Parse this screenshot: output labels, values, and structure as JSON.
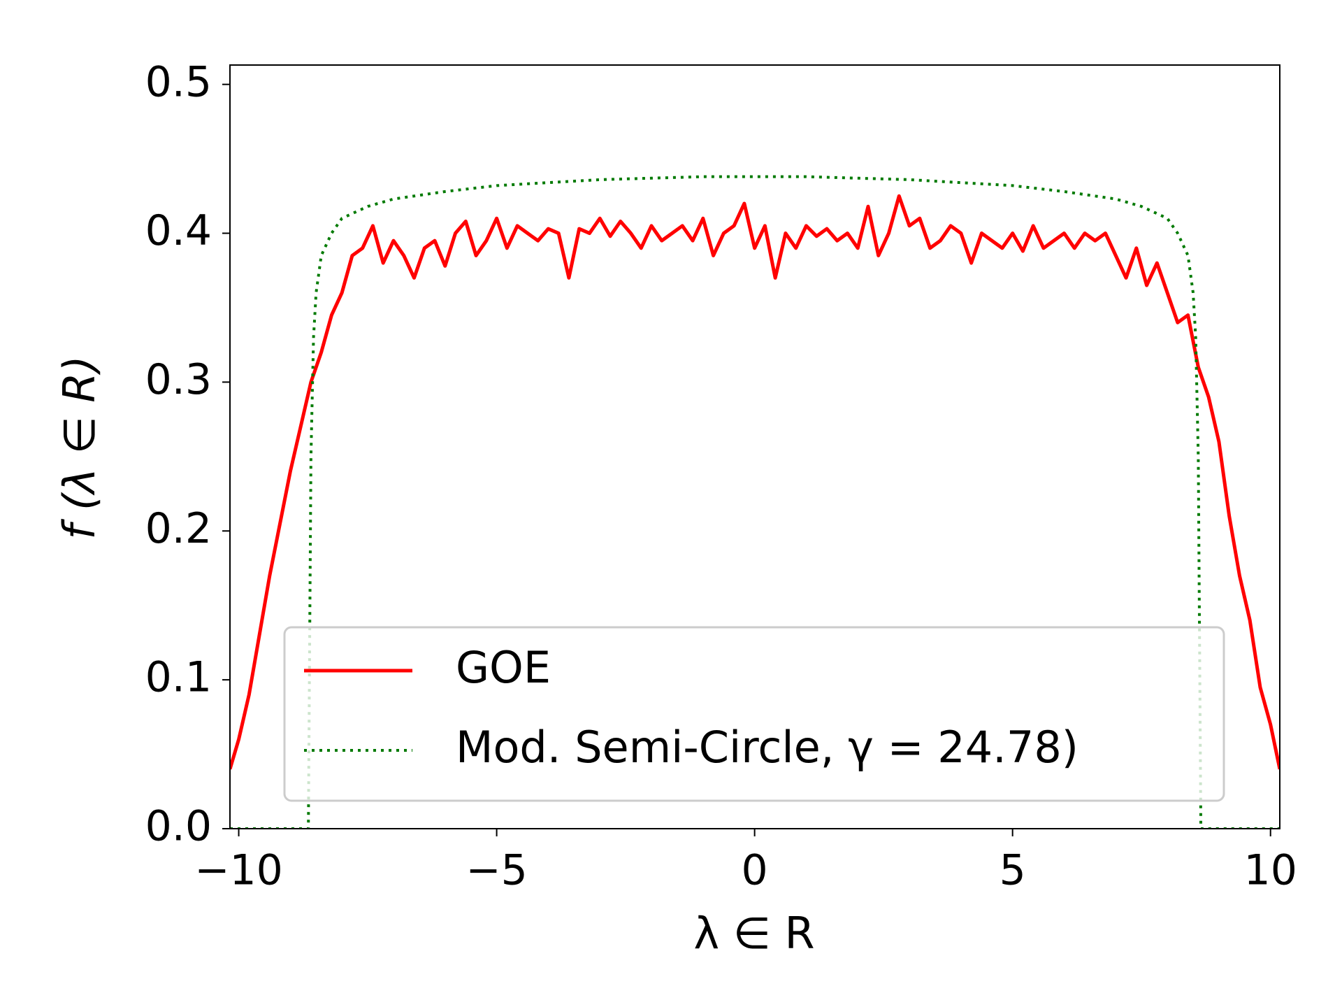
{
  "chart_data": {
    "type": "line",
    "xlabel": "λ ∈ R",
    "ylabel": "f  (λ ∈ R)",
    "xlim": [
      -10.17,
      10.18
    ],
    "ylim": [
      0,
      0.513
    ],
    "xticks": [
      {
        "value": -10,
        "label": "−10"
      },
      {
        "value": -5,
        "label": "−5"
      },
      0,
      5,
      10
    ],
    "yticks": [
      {
        "value": 0,
        "label": "0.0"
      },
      0.1,
      0.2,
      0.3,
      0.4,
      0.5
    ],
    "legend": "lower center",
    "series": [
      {
        "name": "GOE",
        "color": "#ff0000",
        "style": "solid",
        "x": [
          -10.17,
          -10.0,
          -9.8,
          -9.6,
          -9.4,
          -9.2,
          -9.0,
          -8.8,
          -8.6,
          -8.4,
          -8.2,
          -8.0,
          -7.8,
          -7.6,
          -7.4,
          -7.2,
          -7.0,
          -6.8,
          -6.6,
          -6.4,
          -6.2,
          -6.0,
          -5.8,
          -5.6,
          -5.4,
          -5.2,
          -5.0,
          -4.8,
          -4.6,
          -4.4,
          -4.2,
          -4.0,
          -3.8,
          -3.6,
          -3.4,
          -3.2,
          -3.0,
          -2.8,
          -2.6,
          -2.4,
          -2.2,
          -2.0,
          -1.8,
          -1.6,
          -1.4,
          -1.2,
          -1.0,
          -0.8,
          -0.6,
          -0.4,
          -0.2,
          0.0,
          0.2,
          0.4,
          0.6,
          0.8,
          1.0,
          1.2,
          1.4,
          1.6,
          1.8,
          2.0,
          2.2,
          2.4,
          2.6,
          2.8,
          3.0,
          3.2,
          3.4,
          3.6,
          3.8,
          4.0,
          4.2,
          4.4,
          4.6,
          4.8,
          5.0,
          5.2,
          5.4,
          5.6,
          5.8,
          6.0,
          6.2,
          6.4,
          6.6,
          6.8,
          7.0,
          7.2,
          7.4,
          7.6,
          7.8,
          8.0,
          8.2,
          8.4,
          8.6,
          8.8,
          9.0,
          9.2,
          9.4,
          9.6,
          9.8,
          10.0,
          10.18
        ],
        "values": [
          0.04,
          0.06,
          0.09,
          0.13,
          0.17,
          0.205,
          0.24,
          0.27,
          0.3,
          0.32,
          0.345,
          0.36,
          0.385,
          0.39,
          0.405,
          0.38,
          0.395,
          0.385,
          0.37,
          0.39,
          0.395,
          0.378,
          0.4,
          0.408,
          0.385,
          0.395,
          0.41,
          0.39,
          0.405,
          0.4,
          0.395,
          0.403,
          0.4,
          0.37,
          0.403,
          0.4,
          0.41,
          0.398,
          0.408,
          0.4,
          0.39,
          0.405,
          0.395,
          0.4,
          0.405,
          0.395,
          0.41,
          0.385,
          0.4,
          0.405,
          0.42,
          0.39,
          0.405,
          0.37,
          0.4,
          0.39,
          0.405,
          0.398,
          0.403,
          0.395,
          0.4,
          0.39,
          0.418,
          0.385,
          0.4,
          0.425,
          0.405,
          0.41,
          0.39,
          0.395,
          0.405,
          0.4,
          0.38,
          0.4,
          0.395,
          0.39,
          0.4,
          0.388,
          0.405,
          0.39,
          0.395,
          0.4,
          0.39,
          0.4,
          0.395,
          0.4,
          0.385,
          0.37,
          0.39,
          0.365,
          0.38,
          0.36,
          0.34,
          0.345,
          0.31,
          0.29,
          0.26,
          0.21,
          0.17,
          0.14,
          0.095,
          0.07,
          0.04
        ]
      },
      {
        "name": "Mod. Semi-Circle, γ = 24.78)",
        "color": "#007a00",
        "style": "dotted",
        "x": [
          -10.17,
          -8.65,
          -8.62,
          -8.6,
          -8.55,
          -8.5,
          -8.4,
          -8.2,
          -8.0,
          -7.5,
          -7,
          -6,
          -5,
          -4,
          -3,
          -2,
          -1,
          0,
          1,
          2,
          3,
          4,
          5,
          6,
          7,
          7.5,
          8,
          8.2,
          8.4,
          8.5,
          8.55,
          8.6,
          8.62,
          8.65,
          10.18
        ],
        "values": [
          0,
          0,
          0.15,
          0.25,
          0.33,
          0.36,
          0.385,
          0.4,
          0.41,
          0.418,
          0.423,
          0.428,
          0.432,
          0.434,
          0.436,
          0.437,
          0.438,
          0.438,
          0.438,
          0.437,
          0.436,
          0.434,
          0.432,
          0.428,
          0.423,
          0.418,
          0.41,
          0.4,
          0.385,
          0.36,
          0.33,
          0.25,
          0.15,
          0,
          0
        ]
      }
    ]
  }
}
